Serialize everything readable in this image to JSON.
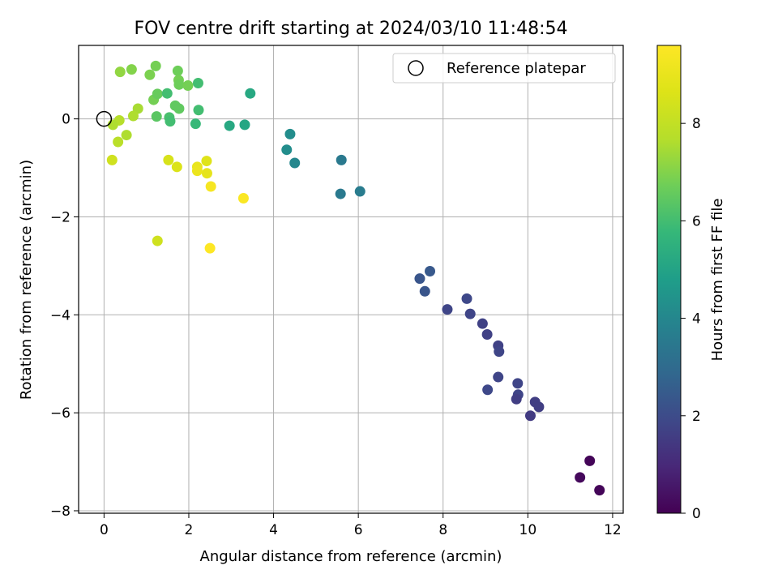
{
  "chart_data": {
    "type": "scatter",
    "title": "FOV centre drift starting at 2024/03/10 11:48:54",
    "xlabel": "Angular distance from reference (arcmin)",
    "ylabel": "Rotation from reference (arcmin)",
    "xlim": [
      -0.6,
      12.25
    ],
    "ylim": [
      -8.05,
      1.5
    ],
    "xticks": [
      0,
      2,
      4,
      6,
      8,
      10,
      12
    ],
    "yticks": [
      0,
      -2,
      -4,
      -6,
      -8
    ],
    "grid": true,
    "legend": {
      "location": "top-right",
      "entries": [
        "Reference platepar"
      ]
    },
    "reference_point": {
      "x": 0.0,
      "y": 0.0
    },
    "colorbar": {
      "label": "Hours from first FF file",
      "range": [
        0,
        9.6
      ],
      "ticks": [
        0,
        2,
        4,
        6,
        8
      ],
      "colormap": "viridis"
    },
    "series": [
      {
        "points": [
          {
            "x": 0.38,
            "y": 0.96,
            "c": 7.2
          },
          {
            "x": 0.65,
            "y": 1.01,
            "c": 7.0
          },
          {
            "x": 1.22,
            "y": 1.08,
            "c": 6.8
          },
          {
            "x": 1.08,
            "y": 0.9,
            "c": 6.9
          },
          {
            "x": 1.74,
            "y": 0.98,
            "c": 6.7
          },
          {
            "x": 1.76,
            "y": 0.79,
            "c": 6.8
          },
          {
            "x": 1.77,
            "y": 0.7,
            "c": 6.7
          },
          {
            "x": 1.98,
            "y": 0.68,
            "c": 6.8
          },
          {
            "x": 2.22,
            "y": 0.73,
            "c": 6.0
          },
          {
            "x": 1.17,
            "y": 0.39,
            "c": 6.8
          },
          {
            "x": 1.26,
            "y": 0.51,
            "c": 6.6
          },
          {
            "x": 1.49,
            "y": 0.52,
            "c": 6.0
          },
          {
            "x": 1.68,
            "y": 0.27,
            "c": 6.5
          },
          {
            "x": 1.77,
            "y": 0.21,
            "c": 6.5
          },
          {
            "x": 2.23,
            "y": 0.18,
            "c": 6.0
          },
          {
            "x": 0.8,
            "y": 0.21,
            "c": 7.5
          },
          {
            "x": 0.69,
            "y": 0.06,
            "c": 7.6
          },
          {
            "x": 0.36,
            "y": -0.03,
            "c": 7.7
          },
          {
            "x": 0.21,
            "y": -0.12,
            "c": 7.6
          },
          {
            "x": 0.53,
            "y": -0.33,
            "c": 7.6
          },
          {
            "x": 0.33,
            "y": -0.47,
            "c": 7.8
          },
          {
            "x": 1.24,
            "y": 0.05,
            "c": 6.4
          },
          {
            "x": 1.54,
            "y": 0.03,
            "c": 6.1
          },
          {
            "x": 1.56,
            "y": -0.05,
            "c": 6.0
          },
          {
            "x": 2.16,
            "y": -0.1,
            "c": 5.8
          },
          {
            "x": 2.96,
            "y": -0.14,
            "c": 5.2
          },
          {
            "x": 3.32,
            "y": -0.12,
            "c": 5.1
          },
          {
            "x": 3.45,
            "y": 0.52,
            "c": 5.2
          },
          {
            "x": 0.19,
            "y": -0.84,
            "c": 8.3
          },
          {
            "x": 1.52,
            "y": -0.84,
            "c": 8.5
          },
          {
            "x": 1.72,
            "y": -0.98,
            "c": 8.6
          },
          {
            "x": 2.2,
            "y": -0.98,
            "c": 9.0
          },
          {
            "x": 2.42,
            "y": -0.86,
            "c": 8.7
          },
          {
            "x": 2.43,
            "y": -1.11,
            "c": 8.9
          },
          {
            "x": 2.2,
            "y": -1.06,
            "c": 9.1
          },
          {
            "x": 2.52,
            "y": -1.38,
            "c": 9.4
          },
          {
            "x": 3.29,
            "y": -1.62,
            "c": 9.5
          },
          {
            "x": 1.26,
            "y": -2.49,
            "c": 8.3
          },
          {
            "x": 2.5,
            "y": -2.64,
            "c": 9.6
          },
          {
            "x": 4.39,
            "y": -0.31,
            "c": 4.2
          },
          {
            "x": 4.31,
            "y": -0.63,
            "c": 4.2
          },
          {
            "x": 4.5,
            "y": -0.9,
            "c": 4.0
          },
          {
            "x": 5.6,
            "y": -0.84,
            "c": 3.5
          },
          {
            "x": 5.58,
            "y": -1.53,
            "c": 3.5
          },
          {
            "x": 6.04,
            "y": -1.48,
            "c": 3.6
          },
          {
            "x": 7.45,
            "y": -3.26,
            "c": 2.3
          },
          {
            "x": 7.57,
            "y": -3.52,
            "c": 2.3
          },
          {
            "x": 7.69,
            "y": -3.11,
            "c": 2.4
          },
          {
            "x": 8.1,
            "y": -3.89,
            "c": 1.8
          },
          {
            "x": 8.56,
            "y": -3.67,
            "c": 1.9
          },
          {
            "x": 8.64,
            "y": -3.98,
            "c": 1.8
          },
          {
            "x": 8.93,
            "y": -4.18,
            "c": 1.7
          },
          {
            "x": 9.04,
            "y": -4.4,
            "c": 1.7
          },
          {
            "x": 9.3,
            "y": -4.63,
            "c": 1.7
          },
          {
            "x": 9.32,
            "y": -4.75,
            "c": 1.8
          },
          {
            "x": 9.3,
            "y": -5.27,
            "c": 1.8
          },
          {
            "x": 9.05,
            "y": -5.53,
            "c": 1.9
          },
          {
            "x": 9.76,
            "y": -5.4,
            "c": 1.8
          },
          {
            "x": 9.77,
            "y": -5.63,
            "c": 1.8
          },
          {
            "x": 9.73,
            "y": -5.72,
            "c": 1.6
          },
          {
            "x": 10.17,
            "y": -5.78,
            "c": 1.6
          },
          {
            "x": 10.26,
            "y": -5.88,
            "c": 1.6
          },
          {
            "x": 10.06,
            "y": -6.06,
            "c": 1.5
          },
          {
            "x": 11.46,
            "y": -6.98,
            "c": 0.1
          },
          {
            "x": 11.23,
            "y": -7.32,
            "c": 0.2
          },
          {
            "x": 11.69,
            "y": -7.58,
            "c": 0.1
          }
        ]
      }
    ]
  }
}
